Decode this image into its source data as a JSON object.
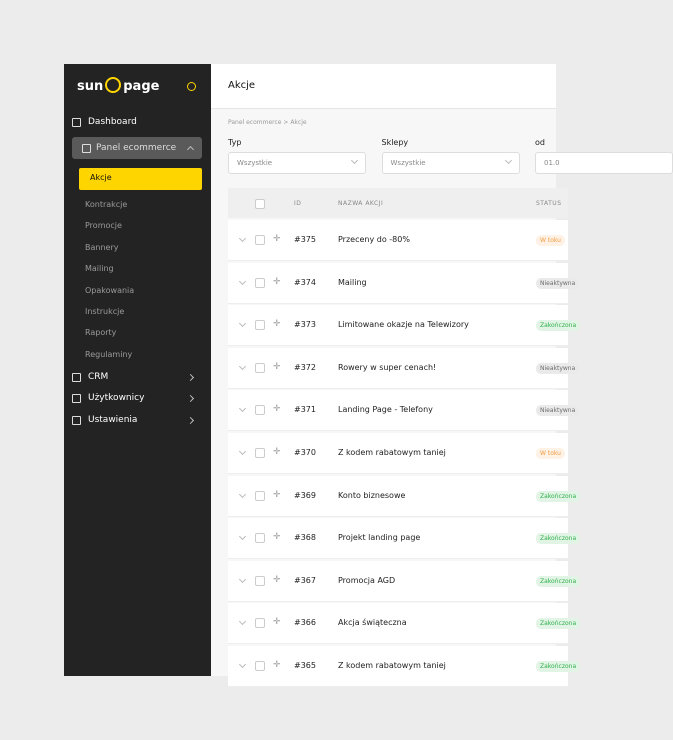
{
  "sidebar": {
    "logo": {
      "left": "sun",
      "right": "page"
    },
    "top": [
      "Dashboard",
      "Panel ecommerce"
    ],
    "submenu": [
      "Akcje",
      "Kontrakcje",
      "Promocje",
      "Bannery",
      "Mailing",
      "Opakowania",
      "Instrukcje",
      "Raporty",
      "Regulaminy"
    ],
    "bottom": [
      "CRM",
      "Użytkownicy",
      "Ustawienia"
    ]
  },
  "header": {
    "title": "Akcje"
  },
  "breadcrumb": [
    "Panel ecommerce",
    "Akcje"
  ],
  "filters": [
    {
      "label": "Typ",
      "value": "Wszystkie"
    },
    {
      "label": "Sklepy",
      "value": "Wszystkie"
    },
    {
      "label": "od",
      "value": "01.0"
    }
  ],
  "table": {
    "columns": [
      "ID",
      "NAZWA AKCJI",
      "STATUS"
    ],
    "rows": [
      {
        "id": "#375",
        "name": "Przeceny do -80%",
        "status": "W toku",
        "color": "#f59e42"
      },
      {
        "id": "#374",
        "name": "Mailing",
        "status": "Nieaktywna",
        "color": "#6b6b6b"
      },
      {
        "id": "#373",
        "name": "Limitowane okazje na Telewizory",
        "status": "Zakończona",
        "color": "#2fb14a"
      },
      {
        "id": "#372",
        "name": "Rowery w super cenach!",
        "status": "Nieaktywna",
        "color": "#6b6b6b"
      },
      {
        "id": "#371",
        "name": "Landing Page - Telefony",
        "status": "Nieaktywna",
        "color": "#6b6b6b"
      },
      {
        "id": "#370",
        "name": "Z kodem rabatowym taniej",
        "status": "W toku",
        "color": "#f59e42"
      },
      {
        "id": "#369",
        "name": "Konto biznesowe",
        "status": "Zakończona",
        "color": "#2fb14a"
      },
      {
        "id": "#368",
        "name": "Projekt landing page",
        "status": "Zakończona",
        "color": "#2fb14a"
      },
      {
        "id": "#367",
        "name": "Promocja AGD",
        "status": "Zakończona",
        "color": "#2fb14a"
      },
      {
        "id": "#366",
        "name": "Akcja świąteczna",
        "status": "Zakończona",
        "color": "#2fb14a"
      },
      {
        "id": "#365",
        "name": "Z kodem rabatowym taniej",
        "status": "Zakończona",
        "color": "#2fb14a"
      }
    ]
  }
}
